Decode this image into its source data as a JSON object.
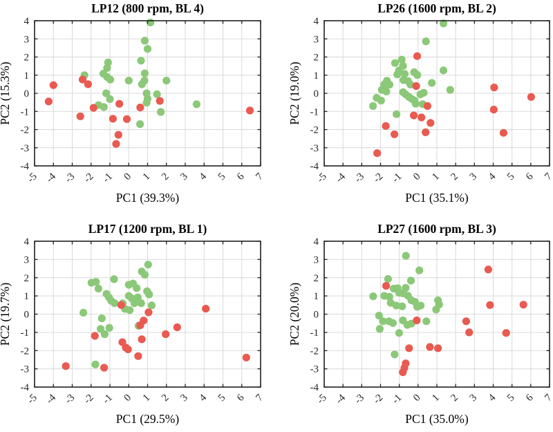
{
  "figure": {
    "background": "#ffffff",
    "marker_radius": 5.6,
    "colors": {
      "green": "#8bc878",
      "red": "#e95a50",
      "grid": "#d9d9d9",
      "axis": "#1f1f1f",
      "tick_label": "#262626",
      "text": "#000000"
    }
  },
  "chart_data": [
    {
      "type": "scatter",
      "title": "LP12 (800 rpm, BL 4)",
      "xlabel": "PC1 (39.3%)",
      "ylabel": "PC2 (15.3%)",
      "xlim": [
        -5,
        7
      ],
      "ylim": [
        -4,
        4
      ],
      "xticks": [
        -5,
        -4,
        -3,
        -2,
        -1,
        0,
        1,
        2,
        3,
        4,
        5,
        6,
        7
      ],
      "yticks": [
        -4,
        -3,
        -2,
        -1,
        0,
        1,
        2,
        3,
        4
      ],
      "grid": true,
      "legend": "none",
      "series": [
        {
          "name": "green",
          "color": "#8bc878",
          "points": [
            [
              1.15,
              3.9
            ],
            [
              0.85,
              2.9
            ],
            [
              1.0,
              2.45
            ],
            [
              0.65,
              1.8
            ],
            [
              -1.1,
              1.7
            ],
            [
              -1.15,
              1.4
            ],
            [
              -1.35,
              1.08
            ],
            [
              -1.15,
              0.9
            ],
            [
              -0.98,
              0.76
            ],
            [
              -2.35,
              1.0
            ],
            [
              0.0,
              0.7
            ],
            [
              0.85,
              1.1
            ],
            [
              0.83,
              0.7
            ],
            [
              0.7,
              0.5
            ],
            [
              2.0,
              0.7
            ],
            [
              -1.2,
              0.0
            ],
            [
              -1.0,
              -0.32
            ],
            [
              -1.6,
              -0.65
            ],
            [
              -1.32,
              -0.76
            ],
            [
              0.95,
              0.0
            ],
            [
              1.0,
              -0.3
            ],
            [
              0.95,
              -0.52
            ],
            [
              1.5,
              -0.05
            ],
            [
              1.7,
              -1.03
            ],
            [
              3.6,
              -0.6
            ],
            [
              0.6,
              -1.7
            ]
          ]
        },
        {
          "name": "red",
          "color": "#e95a50",
          "points": [
            [
              -4.0,
              0.45
            ],
            [
              -4.25,
              -0.45
            ],
            [
              -2.45,
              0.76
            ],
            [
              -2.16,
              0.5
            ],
            [
              -1.87,
              -0.8
            ],
            [
              -2.57,
              -1.27
            ],
            [
              -0.5,
              -0.58
            ],
            [
              0.61,
              -0.78
            ],
            [
              -0.84,
              -1.4
            ],
            [
              -0.1,
              -1.42
            ],
            [
              -0.55,
              -2.29
            ],
            [
              -0.67,
              -2.79
            ],
            [
              1.65,
              -0.42
            ],
            [
              6.43,
              -0.95
            ]
          ]
        }
      ]
    },
    {
      "type": "scatter",
      "title": "LP26 (1600 rpm, BL 2)",
      "xlabel": "PC1 (35.1%)",
      "ylabel": "PC2 (19.0%)",
      "xlim": [
        -5,
        7
      ],
      "ylim": [
        -4,
        4
      ],
      "xticks": [
        -5,
        -4,
        -3,
        -2,
        -1,
        0,
        1,
        2,
        3,
        4,
        5,
        6,
        7
      ],
      "yticks": [
        -4,
        -3,
        -2,
        -1,
        0,
        1,
        2,
        3,
        4
      ],
      "grid": true,
      "legend": "none",
      "series": [
        {
          "name": "green",
          "color": "#8bc878",
          "points": [
            [
              1.35,
              3.85
            ],
            [
              0.42,
              2.86
            ],
            [
              -0.87,
              1.86
            ],
            [
              -1.23,
              1.67
            ],
            [
              -0.8,
              1.51
            ],
            [
              -1.02,
              1.26
            ],
            [
              -1.11,
              1.04
            ],
            [
              -0.71,
              1.07
            ],
            [
              -0.21,
              1.16
            ],
            [
              -0.04,
              1.01
            ],
            [
              1.35,
              1.26
            ],
            [
              -1.66,
              0.69
            ],
            [
              -1.81,
              0.48
            ],
            [
              -1.52,
              0.48
            ],
            [
              -0.78,
              0.73
            ],
            [
              -0.53,
              0.67
            ],
            [
              -0.41,
              0.48
            ],
            [
              0.73,
              0.57
            ],
            [
              1.71,
              0.19
            ],
            [
              -1.93,
              0.19
            ],
            [
              -1.69,
              0.1
            ],
            [
              -0.8,
              0.06
            ],
            [
              -0.66,
              -0.06
            ],
            [
              -0.5,
              -0.19
            ],
            [
              -0.34,
              -0.31
            ],
            [
              -0.19,
              -0.4
            ],
            [
              0.12,
              -0.06
            ],
            [
              0.3,
              0.03
            ],
            [
              -2.21,
              -0.25
            ],
            [
              -1.97,
              -0.4
            ],
            [
              -0.13,
              -0.57
            ],
            [
              0.24,
              -0.6
            ],
            [
              -2.4,
              -0.7
            ],
            [
              -1.15,
              -1.15
            ]
          ]
        },
        {
          "name": "red",
          "color": "#e95a50",
          "points": [
            [
              -0.05,
              2.05
            ],
            [
              -0.1,
              0.4
            ],
            [
              0.5,
              -0.7
            ],
            [
              -0.23,
              -1.22
            ],
            [
              0.18,
              -1.33
            ],
            [
              0.66,
              -1.63
            ],
            [
              -1.72,
              -1.8
            ],
            [
              -1.26,
              -2.26
            ],
            [
              0.4,
              -2.15
            ],
            [
              -2.18,
              -3.3
            ],
            [
              4.05,
              0.32
            ],
            [
              4.03,
              -0.9
            ],
            [
              4.55,
              -2.18
            ],
            [
              6.02,
              -0.2
            ]
          ]
        }
      ]
    },
    {
      "type": "scatter",
      "title": "LP17 (1200 rpm, BL 1)",
      "xlabel": "PC1 (29.5%)",
      "ylabel": "PC2 (19.7%)",
      "xlim": [
        -5,
        7
      ],
      "ylim": [
        -4,
        4
      ],
      "xticks": [
        -5,
        -4,
        -3,
        -2,
        -1,
        0,
        1,
        2,
        3,
        4,
        5,
        6,
        7
      ],
      "yticks": [
        -4,
        -3,
        -2,
        -1,
        0,
        1,
        2,
        3,
        4
      ],
      "grid": true,
      "legend": "none",
      "series": [
        {
          "name": "green",
          "color": "#8bc878",
          "points": [
            [
              1.03,
              2.72
            ],
            [
              0.69,
              2.34
            ],
            [
              0.85,
              2.16
            ],
            [
              -0.78,
              1.92
            ],
            [
              -1.98,
              1.72
            ],
            [
              -1.74,
              1.77
            ],
            [
              -1.61,
              1.4
            ],
            [
              0.0,
              1.61
            ],
            [
              0.23,
              1.68
            ],
            [
              0.42,
              1.43
            ],
            [
              0.97,
              1.26
            ],
            [
              1.08,
              1.08
            ],
            [
              -1.18,
              1.11
            ],
            [
              -1.05,
              0.92
            ],
            [
              -0.93,
              0.73
            ],
            [
              -0.75,
              0.6
            ],
            [
              -0.32,
              0.59
            ],
            [
              0.0,
              1.0
            ],
            [
              0.17,
              0.86
            ],
            [
              0.48,
              0.92
            ],
            [
              0.3,
              0.6
            ],
            [
              0.66,
              0.6
            ],
            [
              -0.2,
              0.29
            ],
            [
              0.05,
              0.22
            ],
            [
              1.22,
              0.48
            ],
            [
              -2.41,
              0.08
            ],
            [
              -1.43,
              -0.23
            ],
            [
              -1.49,
              -0.81
            ],
            [
              -1.03,
              -0.75
            ],
            [
              -1.28,
              -1.1
            ],
            [
              0.52,
              -0.64
            ],
            [
              -1.77,
              -2.76
            ]
          ]
        },
        {
          "name": "red",
          "color": "#e95a50",
          "points": [
            [
              -0.4,
              0.5
            ],
            [
              1.05,
              0.1
            ],
            [
              0.79,
              -0.35
            ],
            [
              0.61,
              -0.61
            ],
            [
              -1.8,
              -1.19
            ],
            [
              -0.34,
              -1.54
            ],
            [
              -0.16,
              -1.83
            ],
            [
              -0.04,
              -1.93
            ],
            [
              0.69,
              -1.38
            ],
            [
              0.5,
              -2.3
            ],
            [
              1.96,
              -1.1
            ],
            [
              2.57,
              -0.72
            ],
            [
              4.09,
              0.3
            ],
            [
              -3.34,
              -2.85
            ],
            [
              -1.31,
              -2.94
            ],
            [
              6.24,
              -2.38
            ]
          ]
        }
      ]
    },
    {
      "type": "scatter",
      "title": "LP27 (1600 rpm, BL 3)",
      "xlabel": "PC1 (35.0%)",
      "ylabel": "PC2 (20.0%)",
      "xlim": [
        -5,
        7
      ],
      "ylim": [
        -4,
        4
      ],
      "xticks": [
        -5,
        -4,
        -3,
        -2,
        -1,
        0,
        1,
        2,
        3,
        4,
        5,
        6,
        7
      ],
      "yticks": [
        -4,
        -3,
        -2,
        -1,
        0,
        1,
        2,
        3,
        4
      ],
      "grid": true,
      "legend": "none",
      "series": [
        {
          "name": "green",
          "color": "#8bc878",
          "points": [
            [
              -0.65,
              3.2
            ],
            [
              0.07,
              2.4
            ],
            [
              -0.38,
              1.84
            ],
            [
              -1.6,
              1.93
            ],
            [
              -2.39,
              0.98
            ],
            [
              -1.8,
              1.0
            ],
            [
              -1.53,
              0.95
            ],
            [
              -1.3,
              1.4
            ],
            [
              -1.09,
              1.42
            ],
            [
              -0.66,
              1.44
            ],
            [
              -1.01,
              1.17
            ],
            [
              -0.81,
              1.14
            ],
            [
              -0.54,
              1.01
            ],
            [
              -0.36,
              0.76
            ],
            [
              -0.17,
              0.68
            ],
            [
              -1.46,
              0.62
            ],
            [
              -1.16,
              0.47
            ],
            [
              -0.85,
              0.43
            ],
            [
              -0.05,
              0.4
            ],
            [
              0.14,
              0.47
            ],
            [
              1.06,
              0.76
            ],
            [
              1.12,
              0.53
            ],
            [
              0.96,
              0.25
            ],
            [
              -2.08,
              -0.08
            ],
            [
              -1.87,
              -0.39
            ],
            [
              -1.55,
              -0.39
            ],
            [
              -1.34,
              -0.49
            ],
            [
              -0.81,
              -0.34
            ],
            [
              -0.57,
              -0.59
            ],
            [
              -0.36,
              -0.52
            ],
            [
              0.44,
              -0.39
            ],
            [
              -2.04,
              -0.81
            ],
            [
              -1.01,
              -1.03
            ],
            [
              -1.25,
              -2.21
            ]
          ]
        },
        {
          "name": "red",
          "color": "#e95a50",
          "points": [
            [
              -1.7,
              1.55
            ],
            [
              3.74,
              2.45
            ],
            [
              3.83,
              0.5
            ],
            [
              5.61,
              0.52
            ],
            [
              -0.07,
              -0.34
            ],
            [
              2.56,
              -0.39
            ],
            [
              2.72,
              -1.0
            ],
            [
              4.69,
              -1.03
            ],
            [
              -0.48,
              -1.87
            ],
            [
              0.63,
              -1.8
            ],
            [
              1.06,
              -1.87
            ],
            [
              -0.66,
              -2.7
            ],
            [
              -0.73,
              -2.95
            ],
            [
              -0.81,
              -3.19
            ]
          ]
        }
      ]
    }
  ]
}
